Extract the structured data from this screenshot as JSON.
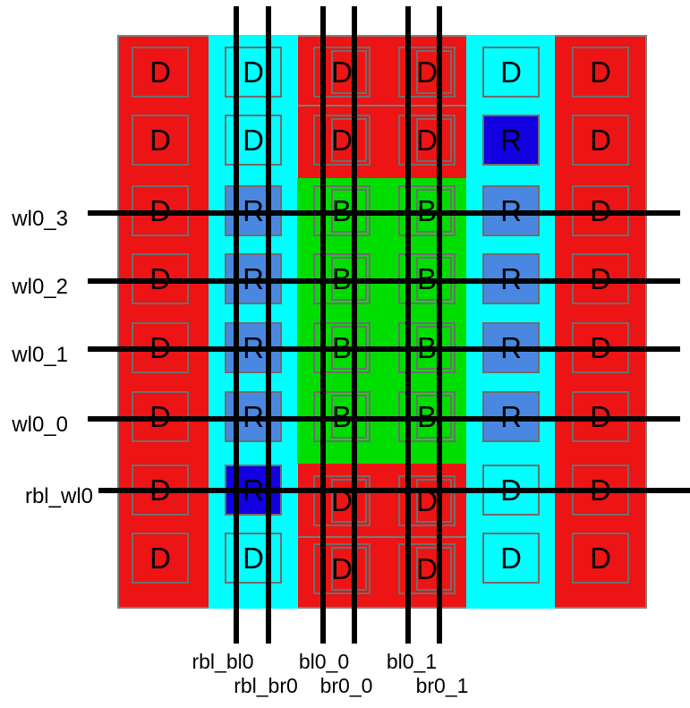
{
  "diagram_type": "sram-bitcell-array-layout",
  "colors": {
    "array_red": "#ec1414",
    "replica_cyan": "#00ffff",
    "bitcell_green": "#00dd00",
    "replica_fill": "#4a87e0",
    "replica_dark_fill": "#1200e0",
    "wire_black": "#000000",
    "outline_gray": "#6e6e6e"
  },
  "wordline_labels": [
    "wl0_3",
    "wl0_2",
    "wl0_1",
    "wl0_0",
    "rbl_wl0"
  ],
  "bitline_labels": [
    "rbl_bl0",
    "rbl_br0",
    "bl0_0",
    "br0_0",
    "bl0_1",
    "br0_1"
  ],
  "grid": {
    "cols": 6,
    "rows": 8,
    "cells": [
      {
        "c": 1,
        "r": 1,
        "t": "D",
        "variant": "outline"
      },
      {
        "c": 1,
        "r": 2,
        "t": "D",
        "variant": "outline"
      },
      {
        "c": 1,
        "r": 3,
        "t": "D",
        "variant": "outline"
      },
      {
        "c": 1,
        "r": 4,
        "t": "D",
        "variant": "outline"
      },
      {
        "c": 1,
        "r": 5,
        "t": "D",
        "variant": "outline"
      },
      {
        "c": 1,
        "r": 6,
        "t": "D",
        "variant": "outline"
      },
      {
        "c": 1,
        "r": 7,
        "t": "D",
        "variant": "outline"
      },
      {
        "c": 1,
        "r": 8,
        "t": "D",
        "variant": "outline"
      },
      {
        "c": 2,
        "r": 1,
        "t": "D",
        "variant": "outline"
      },
      {
        "c": 2,
        "r": 2,
        "t": "D",
        "variant": "outline"
      },
      {
        "c": 2,
        "r": 3,
        "t": "R",
        "variant": "blue"
      },
      {
        "c": 2,
        "r": 4,
        "t": "R",
        "variant": "blue"
      },
      {
        "c": 2,
        "r": 5,
        "t": "R",
        "variant": "blue"
      },
      {
        "c": 2,
        "r": 6,
        "t": "R",
        "variant": "blue"
      },
      {
        "c": 2,
        "r": 7,
        "t": "R",
        "variant": "darkblue"
      },
      {
        "c": 2,
        "r": 8,
        "t": "D",
        "variant": "outline"
      },
      {
        "c": 3,
        "r": 1,
        "t": "D",
        "variant": "double"
      },
      {
        "c": 3,
        "r": 2,
        "t": "D",
        "variant": "double"
      },
      {
        "c": 3,
        "r": 3,
        "t": "B",
        "variant": "double"
      },
      {
        "c": 3,
        "r": 4,
        "t": "B",
        "variant": "double"
      },
      {
        "c": 3,
        "r": 5,
        "t": "B",
        "variant": "double"
      },
      {
        "c": 3,
        "r": 6,
        "t": "B",
        "variant": "double"
      },
      {
        "c": 3,
        "r": 7,
        "t": "D",
        "variant": "double"
      },
      {
        "c": 3,
        "r": 8,
        "t": "D",
        "variant": "double"
      },
      {
        "c": 4,
        "r": 1,
        "t": "D",
        "variant": "double"
      },
      {
        "c": 4,
        "r": 2,
        "t": "D",
        "variant": "double"
      },
      {
        "c": 4,
        "r": 3,
        "t": "B",
        "variant": "double"
      },
      {
        "c": 4,
        "r": 4,
        "t": "B",
        "variant": "double"
      },
      {
        "c": 4,
        "r": 5,
        "t": "B",
        "variant": "double"
      },
      {
        "c": 4,
        "r": 6,
        "t": "B",
        "variant": "double"
      },
      {
        "c": 4,
        "r": 7,
        "t": "D",
        "variant": "double"
      },
      {
        "c": 4,
        "r": 8,
        "t": "D",
        "variant": "double"
      },
      {
        "c": 5,
        "r": 1,
        "t": "D",
        "variant": "outline"
      },
      {
        "c": 5,
        "r": 2,
        "t": "R",
        "variant": "darkblue"
      },
      {
        "c": 5,
        "r": 3,
        "t": "R",
        "variant": "blue"
      },
      {
        "c": 5,
        "r": 4,
        "t": "R",
        "variant": "blue"
      },
      {
        "c": 5,
        "r": 5,
        "t": "R",
        "variant": "blue"
      },
      {
        "c": 5,
        "r": 6,
        "t": "R",
        "variant": "blue"
      },
      {
        "c": 5,
        "r": 7,
        "t": "D",
        "variant": "outline"
      },
      {
        "c": 5,
        "r": 8,
        "t": "D",
        "variant": "outline"
      },
      {
        "c": 6,
        "r": 1,
        "t": "D",
        "variant": "outline"
      },
      {
        "c": 6,
        "r": 2,
        "t": "D",
        "variant": "outline"
      },
      {
        "c": 6,
        "r": 3,
        "t": "D",
        "variant": "outline"
      },
      {
        "c": 6,
        "r": 4,
        "t": "D",
        "variant": "outline"
      },
      {
        "c": 6,
        "r": 5,
        "t": "D",
        "variant": "outline"
      },
      {
        "c": 6,
        "r": 6,
        "t": "D",
        "variant": "outline"
      },
      {
        "c": 6,
        "r": 7,
        "t": "D",
        "variant": "outline"
      },
      {
        "c": 6,
        "r": 8,
        "t": "D",
        "variant": "outline"
      }
    ]
  }
}
